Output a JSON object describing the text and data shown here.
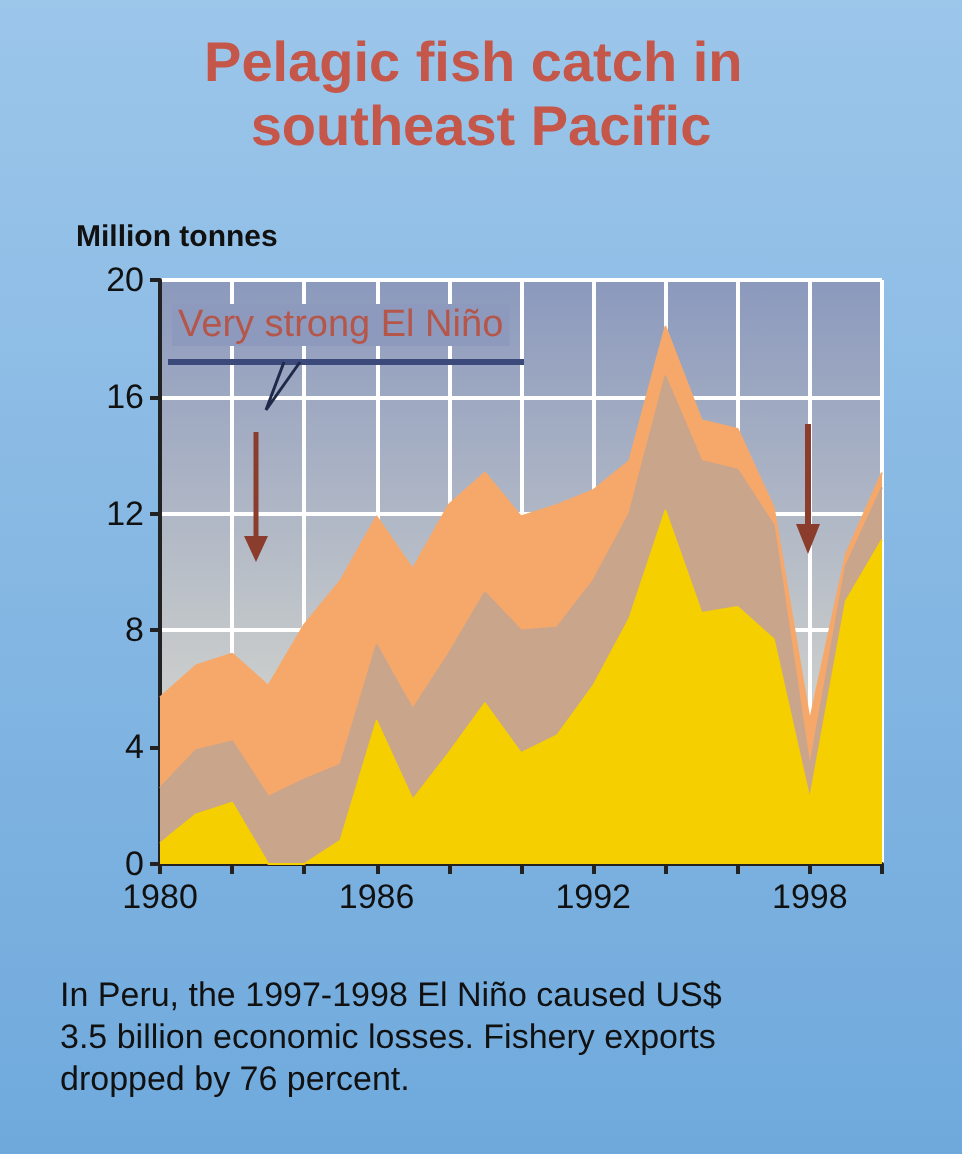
{
  "chart_data": {
    "type": "area",
    "title": "Pelagic fish catch in southeast Pacific",
    "ylabel": "Million tonnes",
    "stacked": true,
    "grid": true,
    "x": [
      1980,
      1981,
      1982,
      1983,
      1984,
      1985,
      1986,
      1987,
      1988,
      1989,
      1990,
      1991,
      1992,
      1993,
      1994,
      1995,
      1996,
      1997,
      1998,
      1999,
      2000
    ],
    "series": [
      {
        "color": "#f5cf00",
        "values": [
          0.7,
          1.7,
          2.1,
          0,
          0,
          0.8,
          4.9,
          2.2,
          3.8,
          5.5,
          3.8,
          4.4,
          6.1,
          8.4,
          12.1,
          8.6,
          8.8,
          7.7,
          2.2,
          9.0,
          11.1
        ]
      },
      {
        "color": "#c9a58c",
        "values": [
          1.9,
          2.2,
          2.1,
          2.3,
          2.9,
          2.6,
          2.6,
          3.1,
          3.4,
          3.8,
          4.2,
          3.7,
          3.6,
          3.6,
          4.6,
          5.2,
          4.7,
          3.9,
          1.1,
          1.2,
          1.8
        ]
      },
      {
        "color": "#f6a86a",
        "values": [
          3.1,
          2.9,
          3.0,
          3.8,
          5.3,
          6.3,
          4.4,
          4.8,
          5.1,
          4.1,
          3.9,
          4.2,
          3.1,
          1.8,
          1.7,
          1.4,
          1.4,
          0.6,
          1.6,
          0.4,
          0.5
        ]
      }
    ],
    "xlim": [
      1980,
      2000
    ],
    "xticks": [
      1980,
      {
        "value": 1982,
        "label": null
      },
      {
        "value": 1984,
        "label": null
      },
      1986,
      {
        "value": 1988,
        "label": null
      },
      {
        "value": 1990,
        "label": null
      },
      1992,
      {
        "value": 1994,
        "label": null
      },
      {
        "value": 1996,
        "label": null
      },
      1998,
      {
        "value": 2000,
        "label": null
      }
    ],
    "ylim": [
      0,
      20
    ],
    "yticks": [
      0,
      4,
      8,
      12,
      16,
      20
    ],
    "annotations": [
      "Very strong El Niño",
      "In Peru, the 1997-1998 El Niño caused US$ 3.5 billion economic losses. Fishery exports dropped by 76 percent."
    ]
  }
}
